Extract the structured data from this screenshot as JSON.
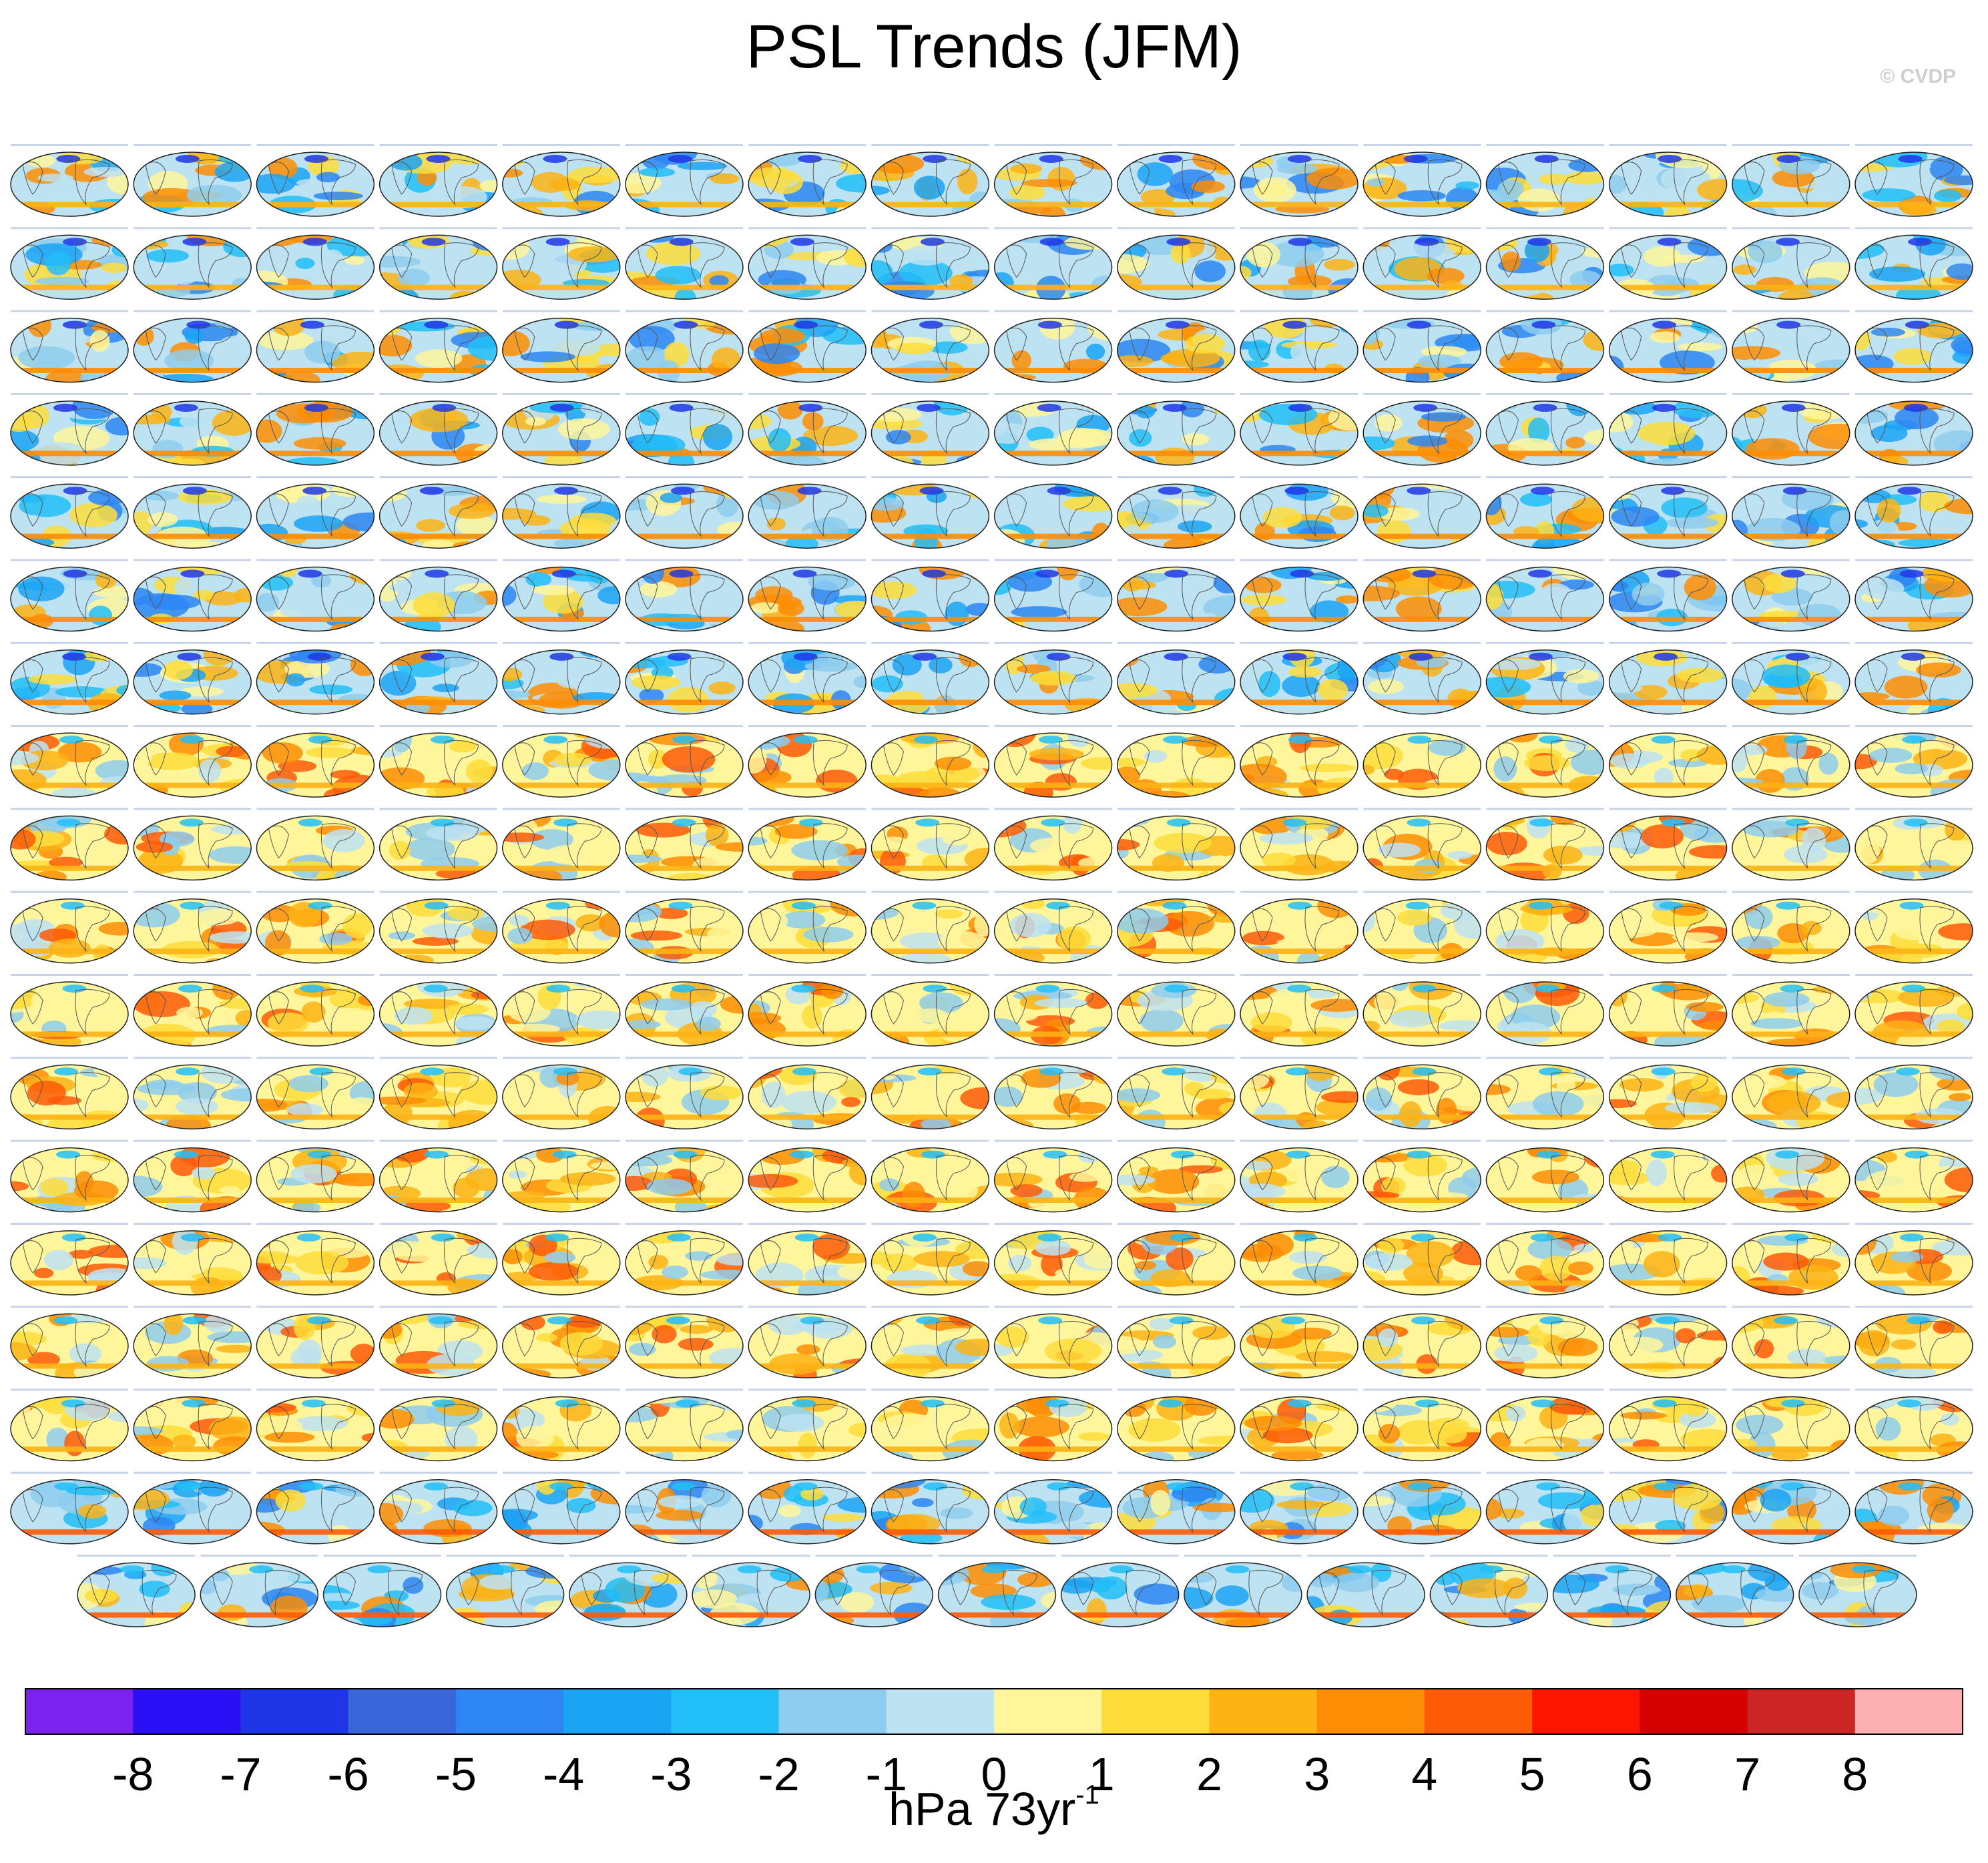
{
  "title": "PSL Trends (JFM)",
  "credit": "© CVDP",
  "units": {
    "base": "hPa 73yr",
    "exponent": "-1"
  },
  "colors": [
    "#7B22EE",
    "#2A0FF7",
    "#1F36E6",
    "#3A66DB",
    "#2D86F3",
    "#1BA3F4",
    "#22BEF8",
    "#8ECDEF",
    "#BDE2F2",
    "#FFF69B",
    "#FEDD3B",
    "#FCB314",
    "#FD8D04",
    "#FE5B07",
    "#FE1500",
    "#D50000",
    "#CB2526",
    "#FDB0B2"
  ],
  "chart_data": {
    "type": "heatmap",
    "description_kind": "panel grid of global sea-level-pressure trend maps",
    "rows": 18,
    "columns": 16,
    "last_row_panels": 15,
    "colorbar": {
      "levels": [
        -8,
        -7,
        -6,
        -5,
        -4,
        -3,
        -2,
        -1,
        0,
        1,
        2,
        3,
        4,
        5,
        6,
        7,
        8
      ],
      "tick_labels": [
        "-8",
        "-7",
        "-6",
        "-5",
        "-4",
        "-3",
        "-2",
        "-1",
        "0",
        "1",
        "2",
        "3",
        "4",
        "5",
        "6",
        "7",
        "8"
      ]
    }
  }
}
